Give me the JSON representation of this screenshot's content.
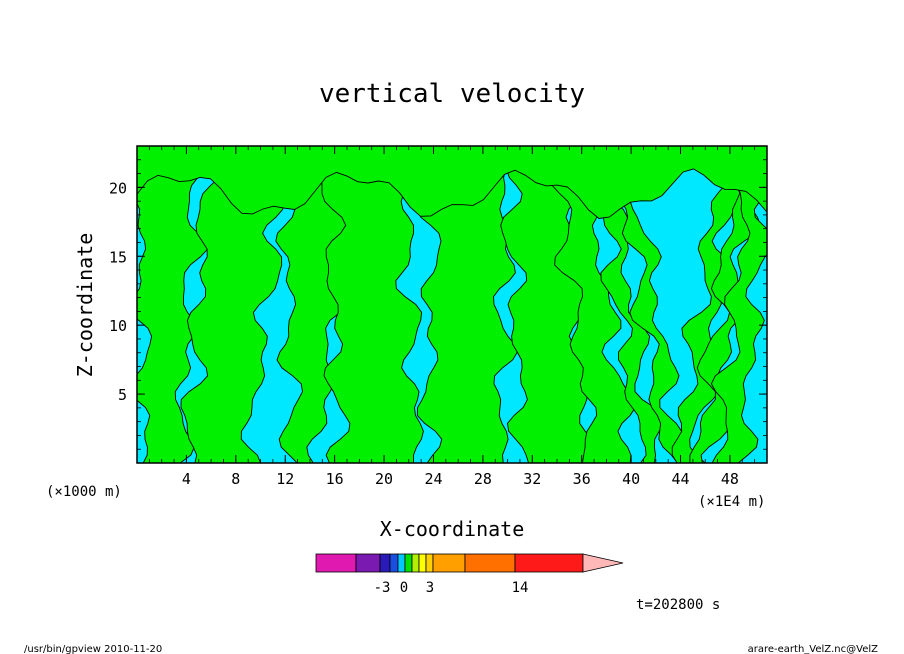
{
  "chart_data": {
    "type": "heatmap",
    "title": "vertical velocity",
    "xlabel": "X-coordinate",
    "ylabel": "Z-coordinate",
    "x_unit_left": "(×1000 m)",
    "x_unit_right": "(×1E4 m)",
    "xlim": [
      0,
      51
    ],
    "ylim": [
      0,
      23
    ],
    "xticks": [
      4,
      8,
      12,
      16,
      20,
      24,
      28,
      32,
      36,
      40,
      44,
      48
    ],
    "yticks": [
      5,
      10,
      15,
      20
    ],
    "time_label": "t=202800 s",
    "colorbar": {
      "colors": [
        "#e01ab0",
        "#7a1ab0",
        "#2a1ab8",
        "#1a4ee0",
        "#00c8ff",
        "#00e000",
        "#b0f000",
        "#ffff00",
        "#ffd000",
        "#ffa000",
        "#ff7000",
        "#ff1a1a",
        "#ff8080",
        "#ffb8b8"
      ],
      "tick_labels": [
        "-3",
        "0",
        "3",
        "14"
      ]
    },
    "regions": [
      {
        "name": "negative",
        "color": "#00e8ff"
      },
      {
        "name": "positive",
        "color": "#00f000"
      }
    ],
    "grid": false
  },
  "footer": {
    "left": "/usr/bin/gpview  2010-11-20",
    "right": "arare-earth_VelZ.nc@VelZ"
  }
}
